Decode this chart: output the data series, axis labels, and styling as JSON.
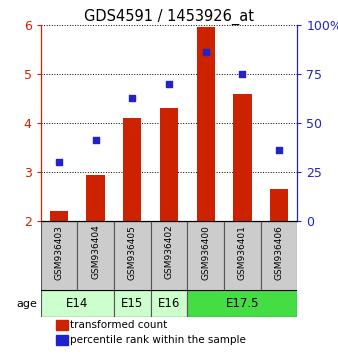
{
  "title": "GDS4591 / 1453926_at",
  "samples": [
    "GSM936403",
    "GSM936404",
    "GSM936405",
    "GSM936402",
    "GSM936400",
    "GSM936401",
    "GSM936406"
  ],
  "bar_values": [
    2.2,
    2.95,
    4.1,
    4.3,
    5.95,
    4.6,
    2.65
  ],
  "scatter_values": [
    3.2,
    3.65,
    4.5,
    4.8,
    5.45,
    5.0,
    3.45
  ],
  "bar_color": "#cc2200",
  "scatter_color": "#2222cc",
  "ylim_left": [
    2,
    6
  ],
  "yticks_left": [
    2,
    3,
    4,
    5,
    6
  ],
  "yticks_right_pct": [
    0,
    25,
    50,
    75,
    100
  ],
  "ytick_labels_right": [
    "0",
    "25",
    "50",
    "75",
    "100%"
  ],
  "age_groups": [
    {
      "label": "E14",
      "spans": [
        0,
        1
      ],
      "color": "#ccffcc"
    },
    {
      "label": "E15",
      "spans": [
        2
      ],
      "color": "#ccffcc"
    },
    {
      "label": "E16",
      "spans": [
        3
      ],
      "color": "#ccffcc"
    },
    {
      "label": "E17.5",
      "spans": [
        4,
        5,
        6
      ],
      "color": "#44dd44"
    }
  ],
  "legend_bar_label": "transformed count",
  "legend_scatter_label": "percentile rank within the sample",
  "bar_bottom": 2.0,
  "age_label": "age",
  "sample_box_color": "#cccccc",
  "bg_color": "#ffffff"
}
